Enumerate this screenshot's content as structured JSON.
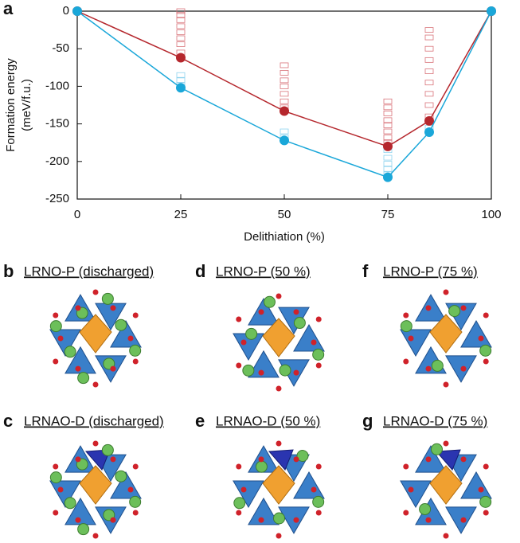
{
  "chart_data": {
    "type": "line",
    "panel_letter": "a",
    "x_label": "Delithiation (%)",
    "y_label": [
      "Formation energy",
      "(meV/f.u.)"
    ],
    "x": [
      0,
      25,
      50,
      75,
      85,
      100
    ],
    "series": [
      {
        "color": "#b5272d",
        "values": [
          0,
          -62,
          -133,
          -180,
          -146,
          0
        ]
      },
      {
        "color": "#1aa7d9",
        "values": [
          0,
          -102,
          -172,
          -221,
          -161,
          0
        ]
      }
    ],
    "scatter": [
      {
        "color": "#d9747a",
        "x": [
          25,
          25,
          25,
          25,
          25,
          25,
          25,
          25,
          50,
          50,
          50,
          50,
          50,
          50,
          50,
          75,
          75,
          75,
          75,
          75,
          75,
          75,
          75,
          85,
          85,
          85,
          85,
          85,
          85,
          85,
          85,
          85
        ],
        "values": [
          0,
          -5,
          -12,
          -20,
          -28,
          -36,
          -44,
          -55,
          -72,
          -82,
          -92,
          -100,
          -110,
          -120,
          -128,
          -120,
          -128,
          -136,
          -145,
          -152,
          -160,
          -168,
          -175,
          -25,
          -35,
          -50,
          -65,
          -80,
          -95,
          -110,
          -125,
          -140
        ]
      },
      {
        "color": "#8fd3ef",
        "x": [
          25,
          25,
          25,
          50,
          50,
          75,
          75,
          75,
          75,
          75,
          85,
          85
        ],
        "values": [
          -85,
          -92,
          -98,
          -160,
          -168,
          -185,
          -195,
          -203,
          -210,
          -217,
          -155,
          -160
        ]
      }
    ],
    "xlim": [
      0,
      100
    ],
    "xticks": [
      0,
      25,
      50,
      75,
      100
    ],
    "ylim": [
      -250,
      0
    ],
    "yticks": [
      -250,
      -200,
      -150,
      -100,
      -50,
      0
    ]
  },
  "panels": [
    {
      "letter": "b",
      "title": "LRNO-P (discharged)"
    },
    {
      "letter": "d",
      "title": "LRNO-P (50 %)"
    },
    {
      "letter": "f",
      "title": "LRNO-P (75 %)"
    },
    {
      "letter": "c",
      "title": "LRNAO-D (discharged)"
    },
    {
      "letter": "e",
      "title": "LRNAO-D (50 %)"
    },
    {
      "letter": "g",
      "title": "LRNAO-D (75 %)"
    }
  ]
}
